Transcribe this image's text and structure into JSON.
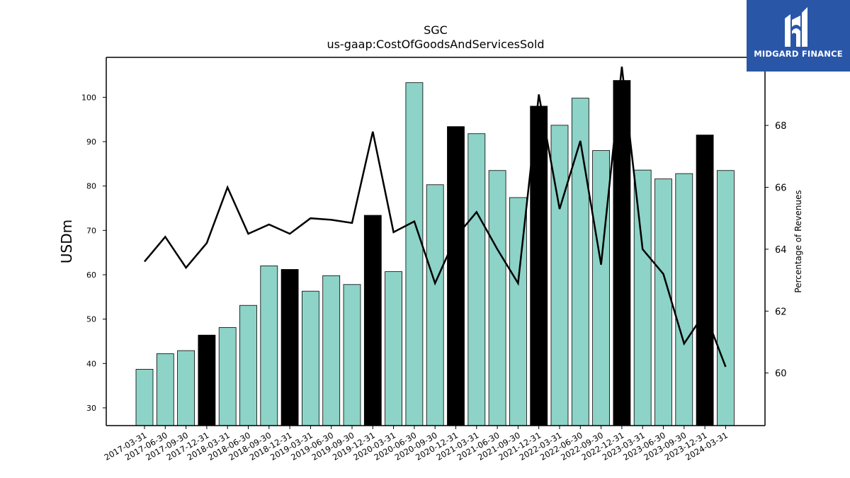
{
  "chart_data": {
    "type": "bar",
    "title": "SGC",
    "subtitle": "us-gaap:CostOfGoodsAndServicesSold",
    "ylabel": "USDm",
    "y2label": "Percentage of Revenues",
    "ylim": [
      26,
      109
    ],
    "y2lim": [
      58.3,
      70.2
    ],
    "yticks": [
      30,
      40,
      50,
      60,
      70,
      80,
      90,
      100
    ],
    "y2ticks": [
      60,
      62,
      64,
      66,
      68
    ],
    "categories": [
      "2017-03-31",
      "2017-06-30",
      "2017-09-30",
      "2017-12-31",
      "2018-03-31",
      "2018-06-30",
      "2018-09-30",
      "2018-12-31",
      "2019-03-31",
      "2019-06-30",
      "2019-09-30",
      "2019-12-31",
      "2020-03-31",
      "2020-06-30",
      "2020-09-30",
      "2020-12-31",
      "2021-03-31",
      "2021-06-30",
      "2021-09-30",
      "2021-12-31",
      "2022-03-31",
      "2022-06-30",
      "2022-09-30",
      "2022-12-31",
      "2023-03-31",
      "2023-06-30",
      "2023-09-30",
      "2023-12-31",
      "2024-03-31"
    ],
    "series": [
      {
        "type": "bar",
        "values": [
          38.7,
          42.2,
          42.9,
          46.4,
          48.1,
          53.1,
          62.0,
          61.2,
          56.3,
          59.8,
          57.8,
          73.4,
          60.7,
          103.3,
          80.3,
          93.4,
          91.8,
          83.5,
          77.4,
          98.0,
          93.7,
          99.8,
          88.0,
          103.8,
          83.6,
          81.6,
          82.8,
          91.5,
          83.5
        ],
        "colors": [
          "#8dd3c7",
          "#8dd3c7",
          "#8dd3c7",
          "#000000",
          "#8dd3c7",
          "#8dd3c7",
          "#8dd3c7",
          "#000000",
          "#8dd3c7",
          "#8dd3c7",
          "#8dd3c7",
          "#000000",
          "#8dd3c7",
          "#8dd3c7",
          "#8dd3c7",
          "#000000",
          "#8dd3c7",
          "#8dd3c7",
          "#8dd3c7",
          "#000000",
          "#8dd3c7",
          "#8dd3c7",
          "#8dd3c7",
          "#000000",
          "#8dd3c7",
          "#8dd3c7",
          "#8dd3c7",
          "#000000",
          "#8dd3c7"
        ]
      },
      {
        "type": "line",
        "axis": "right",
        "color": "#000000",
        "values": [
          63.6,
          64.4,
          63.4,
          64.2,
          66.0,
          64.5,
          64.8,
          64.5,
          65.0,
          64.95,
          64.85,
          67.8,
          64.55,
          64.9,
          62.9,
          64.4,
          65.2,
          64.0,
          62.9,
          69.0,
          65.3,
          67.5,
          63.5,
          69.9,
          64.0,
          63.2,
          60.95,
          61.95,
          60.2
        ]
      }
    ],
    "grid": false,
    "legend": "none"
  },
  "logo": {
    "text": "MIDGARD FINANCE",
    "background": "#2a56a8"
  }
}
